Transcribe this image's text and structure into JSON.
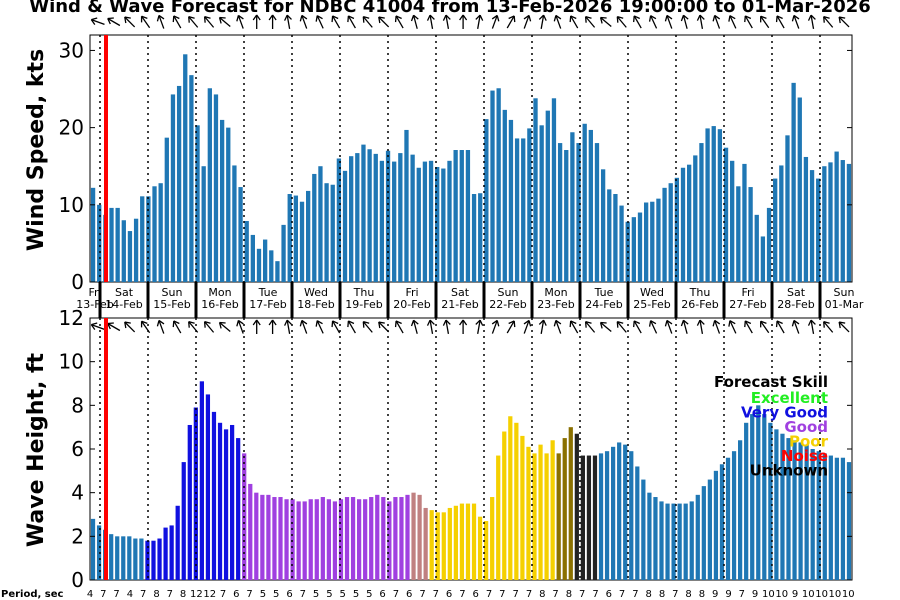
{
  "title": "Wind & Wave Forecast for NDBC 41004 from 13-Feb-2026 19:00:00 to 01-Mar-2026",
  "colors": {
    "bar": "#1f77b4",
    "now_line": "#ff0000",
    "skill_good": "#a040e0",
    "skill_good_fade": "#c08080",
    "skill_poor": "#f5d000",
    "skill_poor_dark": "#8a7000",
    "skill_unknown": "#1f77b4",
    "skill_verygood": "#1010e0"
  },
  "days": {
    "weekdays": [
      "Fri",
      "Sat",
      "Sun",
      "Mon",
      "Tue",
      "Wed",
      "Thu",
      "Fri",
      "Sat",
      "Sun",
      "Mon",
      "Tue",
      "Wed",
      "Thu",
      "Fri",
      "Sat",
      "Sun"
    ],
    "dates": [
      "13-Feb",
      "14-Feb",
      "15-Feb",
      "16-Feb",
      "17-Feb",
      "18-Feb",
      "19-Feb",
      "20-Feb",
      "21-Feb",
      "22-Feb",
      "23-Feb",
      "24-Feb",
      "25-Feb",
      "26-Feb",
      "27-Feb",
      "28-Feb",
      "01-Mar"
    ]
  },
  "legend": {
    "title": "Forecast Skill",
    "items": [
      {
        "label": "Excellent",
        "color": "#22ee22"
      },
      {
        "label": "Very Good",
        "color": "#1010e0"
      },
      {
        "label": "Good",
        "color": "#a040e0"
      },
      {
        "label": "Poor",
        "color": "#f5d000"
      },
      {
        "label": "Noise",
        "color": "#ff0000"
      },
      {
        "label": "Unknown",
        "color": "#000000"
      }
    ]
  },
  "period_label": "Period, sec",
  "chart_data": [
    {
      "type": "bar",
      "title": "Wind & Wave Forecast for NDBC 41004 from 13-Feb-2026 19:00:00 to 01-Mar-2026",
      "xlabel": "",
      "ylabel": "Wind Speed, kts",
      "ylim": [
        0,
        32
      ],
      "yticks": [
        0,
        10,
        20,
        30
      ],
      "hours_start": 19,
      "hours_step": 3,
      "values": [
        12.2,
        10.0,
        8.7,
        9.6,
        9.6,
        8.0,
        6.6,
        8.2,
        11.1,
        11.1,
        12.4,
        12.8,
        18.7,
        24.3,
        25.4,
        29.5,
        26.8,
        20.3,
        15.0,
        25.1,
        24.3,
        21.0,
        20.0,
        15.1,
        12.3,
        7.9,
        6.1,
        4.3,
        5.5,
        4.1,
        2.7,
        7.4,
        11.4,
        11.2,
        10.4,
        11.8,
        14.0,
        15.0,
        12.8,
        12.6,
        16.0,
        14.4,
        16.3,
        16.7,
        17.8,
        17.2,
        16.6,
        15.7,
        17.0,
        15.6,
        16.7,
        19.7,
        16.5,
        14.8,
        15.6,
        15.7,
        14.9,
        14.7,
        15.7,
        17.1,
        17.1,
        17.1,
        11.4,
        11.5,
        21.1,
        24.8,
        25.1,
        22.3,
        21.0,
        18.6,
        18.6,
        19.9,
        23.8,
        20.3,
        22.2,
        23.8,
        18.0,
        17.1,
        19.4,
        18.0,
        20.5,
        19.7,
        18.0,
        14.6,
        12.0,
        11.4,
        9.9,
        7.8,
        8.4,
        9.0,
        10.3,
        10.4,
        10.8,
        12.2,
        12.8,
        13.5,
        14.8,
        15.2,
        16.4,
        18.0,
        19.9,
        20.2,
        19.8,
        17.4,
        15.7,
        12.4,
        15.3,
        12.3,
        8.7,
        5.9,
        9.6,
        13.4,
        15.1,
        19.0,
        25.8,
        23.9,
        16.2,
        14.5,
        13.4,
        15.0,
        15.5,
        16.9,
        15.8,
        15.3
      ]
    },
    {
      "type": "bar",
      "title": "",
      "xlabel": "Period, sec",
      "ylabel": "Wave Height, ft",
      "ylim": [
        0,
        12
      ],
      "yticks": [
        0,
        2,
        4,
        6,
        8,
        10,
        12
      ],
      "values": [
        2.8,
        2.5,
        2.3,
        2.1,
        2.0,
        2.0,
        2.0,
        1.9,
        1.9,
        1.8,
        1.8,
        1.9,
        2.4,
        2.5,
        3.4,
        5.4,
        7.1,
        7.9,
        9.1,
        8.5,
        7.7,
        7.2,
        6.9,
        7.1,
        6.5,
        5.8,
        4.4,
        4.0,
        3.9,
        3.9,
        3.8,
        3.8,
        3.7,
        3.7,
        3.6,
        3.6,
        3.7,
        3.7,
        3.8,
        3.7,
        3.6,
        3.7,
        3.8,
        3.8,
        3.7,
        3.7,
        3.8,
        3.9,
        3.8,
        3.6,
        3.8,
        3.8,
        3.9,
        4.0,
        3.9,
        3.3,
        3.2,
        3.1,
        3.1,
        3.3,
        3.4,
        3.5,
        3.5,
        3.5,
        2.9,
        2.7,
        3.8,
        5.7,
        6.8,
        7.5,
        7.2,
        6.6,
        6.1,
        5.8,
        6.2,
        5.8,
        6.4,
        5.8,
        6.5,
        7.0,
        6.7,
        5.7,
        5.7,
        5.7,
        5.8,
        5.9,
        6.1,
        6.3,
        6.2,
        5.9,
        5.2,
        4.6,
        4.0,
        3.8,
        3.6,
        3.5,
        3.5,
        3.5,
        3.5,
        3.6,
        3.9,
        4.3,
        4.6,
        5.0,
        5.3,
        5.6,
        5.9,
        6.4,
        7.2,
        7.6,
        8.0,
        7.6,
        7.2,
        6.9,
        6.7,
        6.5,
        6.4,
        6.3,
        6.2,
        6.0,
        5.9,
        5.8,
        5.7,
        5.6,
        5.6,
        5.4
      ],
      "period_ticks": [
        "4",
        "7",
        "7",
        "4",
        "7",
        "8",
        "7",
        "8",
        "12",
        "12",
        "7",
        "6",
        "7",
        "5",
        "5",
        "6",
        "7",
        "5",
        "5",
        "5",
        "5",
        "5",
        "6",
        "7",
        "6",
        "7",
        "7",
        "6",
        "7",
        "6",
        "7",
        "7",
        "7",
        "7",
        "8",
        "7",
        "8",
        "7",
        "7",
        "6",
        "7",
        "7",
        "8",
        "8",
        "7",
        "8",
        "8",
        "9",
        "9",
        "7",
        "9",
        "10",
        "10",
        "9",
        "10",
        "10",
        "10",
        "10"
      ]
    }
  ],
  "wind_arrow_angles": [
    200,
    210,
    225,
    235,
    250,
    240,
    230,
    230,
    220,
    250,
    270,
    270,
    260,
    250,
    245,
    240,
    240,
    230,
    225,
    240,
    255,
    260,
    260,
    270,
    280,
    290,
    300,
    290,
    280,
    250,
    240,
    230,
    220,
    230,
    240,
    245,
    250,
    255,
    260,
    250,
    245,
    240,
    235,
    240,
    250,
    260,
    230,
    225
  ]
}
